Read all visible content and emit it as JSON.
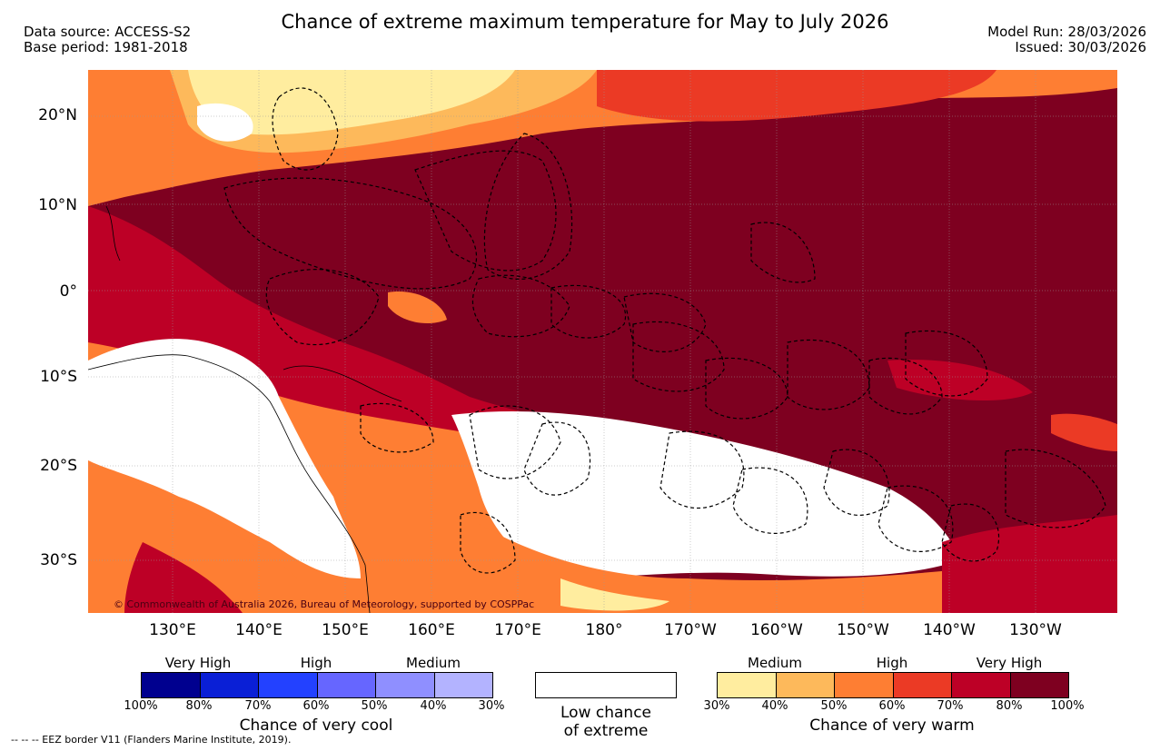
{
  "header": {
    "title": "Chance of extreme maximum temperature for May to July 2026",
    "data_source": "Data source: ACCESS-S2",
    "base_period": "Base period: 1981-2018",
    "model_run": "Model Run: 28/03/2026",
    "issued": "Issued: 30/03/2026"
  },
  "map": {
    "lat_labels": [
      "20°N",
      "10°N",
      "0°",
      "10°S",
      "20°S",
      "30°S"
    ],
    "lon_labels": [
      "130°E",
      "140°E",
      "150°E",
      "160°E",
      "170°E",
      "180°",
      "170°W",
      "160°W",
      "150°W",
      "140°W",
      "130°W"
    ],
    "copyright": "© Commonwealth of Australia 2026, Bureau of Meteorology, supported by COSPPac",
    "colors": {
      "background": "#7e0020",
      "land_mask": "#ffffff",
      "eez_line": "#000000"
    }
  },
  "legend": {
    "cool": {
      "title": "Chance of very cool",
      "categories": [
        "Very High",
        "High",
        "Medium"
      ],
      "ticks": [
        "100%",
        "80%",
        "70%",
        "60%",
        "50%",
        "40%",
        "30%"
      ],
      "colors": [
        "#00008f",
        "#0a1fd6",
        "#2341ff",
        "#6666ff",
        "#8f8fff",
        "#b3b3ff"
      ]
    },
    "neutral": {
      "line1": "Low chance",
      "line2": "of extreme"
    },
    "warm": {
      "title": "Chance of very warm",
      "categories": [
        "Medium",
        "High",
        "Very High"
      ],
      "ticks": [
        "30%",
        "40%",
        "50%",
        "60%",
        "70%",
        "80%",
        "100%"
      ],
      "colors": [
        "#ffed9f",
        "#fdb95b",
        "#fe7e33",
        "#eb3a25",
        "#bd0026",
        "#7e0020"
      ]
    }
  },
  "footer": {
    "eez_note": "-- -- -- EEZ border V11 (Flanders Marine Institute, 2019)."
  }
}
